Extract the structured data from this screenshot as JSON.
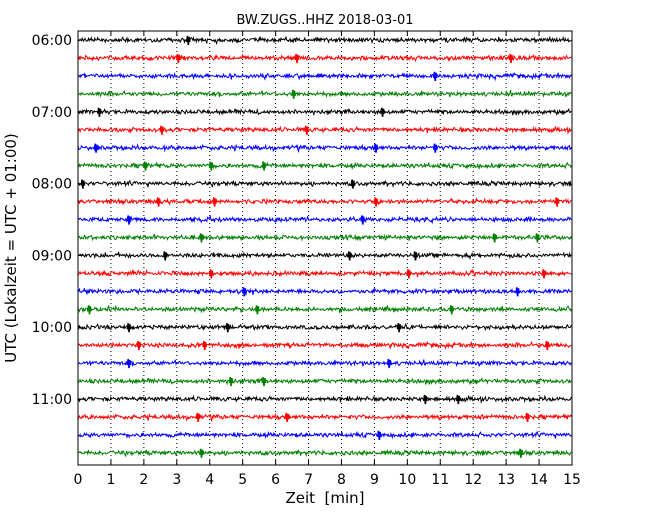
{
  "chart_data": {
    "type": "line",
    "title": "BW.ZUGS..HHZ 2018-03-01",
    "xlabel": "Zeit  [min]",
    "ylabel": "UTC (Lokalzeit = UTC + 01:00)",
    "xlim": [
      0,
      15
    ],
    "x_ticks": [
      "0",
      "1",
      "2",
      "3",
      "4",
      "5",
      "6",
      "7",
      "8",
      "9",
      "10",
      "11",
      "12",
      "13",
      "14",
      "15"
    ],
    "y_ticks": [
      "06:00",
      "07:00",
      "08:00",
      "09:00",
      "10:00",
      "11:00"
    ],
    "y_tick_rows": [
      0,
      4,
      8,
      12,
      16,
      20
    ],
    "grid": "vertical dotted",
    "colors": [
      "#000000",
      "#ff0000",
      "#0000ff",
      "#008000"
    ],
    "series": [
      {
        "start": "06:00",
        "spikes": [
          3.3
        ]
      },
      {
        "start": "06:15",
        "spikes": [
          3.0,
          6.6,
          13.1
        ]
      },
      {
        "start": "06:30",
        "spikes": [
          10.8
        ]
      },
      {
        "start": "06:45",
        "spikes": [
          6.5
        ]
      },
      {
        "start": "07:00",
        "spikes": [
          0.6,
          9.2
        ]
      },
      {
        "start": "07:15",
        "spikes": [
          2.5,
          6.9
        ]
      },
      {
        "start": "07:30",
        "spikes": [
          0.5,
          9.0,
          10.8
        ]
      },
      {
        "start": "07:45",
        "spikes": [
          2.0,
          4.0,
          5.6
        ]
      },
      {
        "start": "08:00",
        "spikes": [
          0.1,
          8.3
        ]
      },
      {
        "start": "08:15",
        "spikes": [
          2.4,
          4.1,
          9.0,
          14.5
        ]
      },
      {
        "start": "08:30",
        "spikes": [
          1.5,
          8.6
        ]
      },
      {
        "start": "08:45",
        "spikes": [
          3.7,
          12.6,
          13.9
        ]
      },
      {
        "start": "09:00",
        "spikes": [
          2.6,
          8.2,
          10.2
        ]
      },
      {
        "start": "09:15",
        "spikes": [
          4.0,
          10.0,
          14.1
        ]
      },
      {
        "start": "09:30",
        "spikes": [
          5.0,
          13.3
        ]
      },
      {
        "start": "09:45",
        "spikes": [
          0.3,
          5.4,
          11.3
        ]
      },
      {
        "start": "10:00",
        "spikes": [
          1.5,
          4.5,
          9.7
        ]
      },
      {
        "start": "10:15",
        "spikes": [
          1.8,
          3.8,
          14.2
        ]
      },
      {
        "start": "10:30",
        "spikes": [
          1.5,
          9.4
        ]
      },
      {
        "start": "10:45",
        "spikes": [
          4.6,
          5.6
        ]
      },
      {
        "start": "11:00",
        "spikes": [
          10.5,
          11.5
        ]
      },
      {
        "start": "11:15",
        "spikes": [
          3.6,
          6.3,
          13.6
        ]
      },
      {
        "start": "11:30",
        "spikes": [
          9.1
        ]
      },
      {
        "start": "11:45",
        "spikes": [
          3.7,
          13.4
        ]
      }
    ]
  }
}
